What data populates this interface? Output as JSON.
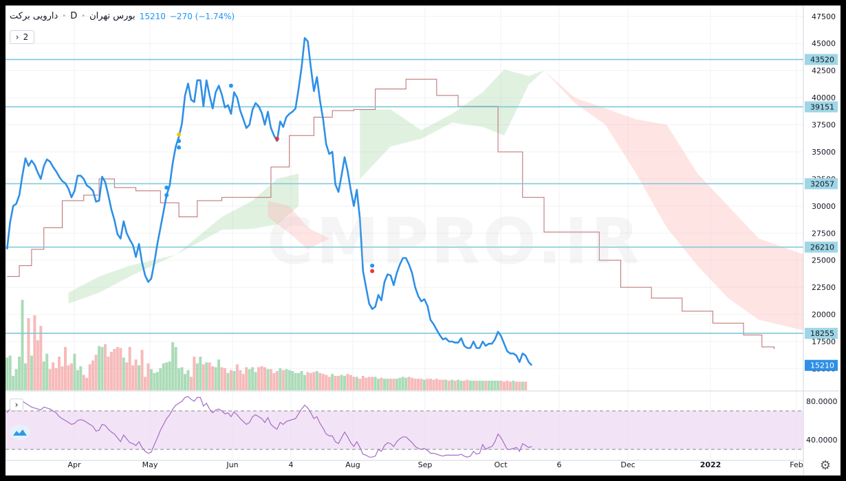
{
  "legend": {
    "symbol": "دارویی برکت",
    "interval": "D",
    "exchange": "بورس تهران",
    "last": "15210",
    "change": "−270 (−1.74%)"
  },
  "controls": {
    "collapse_label": "2",
    "rsi_collapse": "›"
  },
  "watermark": "CMPRO.IR",
  "colors": {
    "price_line": "#2e8fe6",
    "level_line": "#7cc7da",
    "level_label_bg": "#9fd6e6",
    "cloud_bull": "#a5d6a7",
    "cloud_bear": "#ffb3b3",
    "baseline": "#b86b6b",
    "vol_up": "#8fcfa0",
    "vol_down": "#f3a3a3",
    "rsi_line": "#a46bc8",
    "rsi_band": "#ecd9f2"
  },
  "chart_data": [
    {
      "type": "line",
      "title": "",
      "x_ticks": [
        "Apr",
        "May",
        "Jun",
        "4",
        "Aug",
        "Sep",
        "Oct",
        "6",
        "Dec",
        "2022",
        "Feb"
      ],
      "y_ticks": [
        47500,
        45000,
        42500,
        40000,
        37500,
        35000,
        32500,
        30000,
        27500,
        25000,
        22500,
        20000,
        17500,
        15000
      ],
      "ylim": [
        13000,
        48500
      ],
      "price": [
        26000,
        28500,
        30000,
        30200,
        31000,
        32800,
        34400,
        33700,
        34200,
        33800,
        33100,
        32500,
        33700,
        34300,
        34100,
        33600,
        33200,
        32700,
        32300,
        32100,
        31600,
        30800,
        31400,
        32800,
        32800,
        32500,
        31900,
        31700,
        31400,
        30400,
        30500,
        32700,
        32200,
        31000,
        29700,
        28700,
        27400,
        27000,
        28600,
        27500,
        26900,
        26400,
        25300,
        26500,
        24800,
        23600,
        23000,
        23300,
        24800,
        26500,
        28000,
        29500,
        31000,
        31900,
        34000,
        35500,
        36400,
        37600,
        40200,
        41300,
        39800,
        39600,
        41600,
        41600,
        39200,
        41600,
        40200,
        39000,
        40500,
        41100,
        40300,
        39100,
        39300,
        38500,
        40500,
        40000,
        38800,
        38000,
        37200,
        37500,
        38900,
        39500,
        39200,
        38600,
        37500,
        38700,
        37200,
        36500,
        36000,
        37800,
        37300,
        38200,
        38500,
        38700,
        39000,
        40800,
        42800,
        45500,
        45200,
        42800,
        40600,
        41900,
        39700,
        38000,
        35700,
        34800,
        35000,
        32000,
        31300,
        32800,
        34500,
        33200,
        31500,
        30000,
        31500,
        28800,
        24000,
        22500,
        21000,
        20500,
        20700,
        21800,
        21300,
        23000,
        23700,
        23600,
        22700,
        23800,
        24600,
        25200,
        25200,
        24600,
        23800,
        22500,
        21700,
        21200,
        21400,
        20800,
        19500,
        19100,
        18600,
        18100,
        17700,
        17800,
        17500,
        17500,
        17400,
        17400,
        17800,
        17100,
        16900,
        16900,
        17500,
        16900,
        16900,
        17500,
        17100,
        17300,
        17300,
        17700,
        18400,
        18000,
        17300,
        16600,
        16400,
        16400,
        16200,
        15600,
        16400,
        16200,
        15600,
        15300
      ],
      "levels": [
        {
          "value": 43520,
          "label": "43520"
        },
        {
          "value": 39151,
          "label": "39151"
        },
        {
          "value": 32057,
          "label": "32057"
        },
        {
          "value": 26210,
          "label": "26210"
        },
        {
          "value": 18255,
          "label": "18255"
        }
      ],
      "last_price_label": "15210",
      "baseline": [
        [
          0,
          23500
        ],
        [
          4,
          24500
        ],
        [
          8,
          26000
        ],
        [
          12,
          28000
        ],
        [
          18,
          30500
        ],
        [
          25,
          31000
        ],
        [
          30,
          32500
        ],
        [
          35,
          31700
        ],
        [
          42,
          31400
        ],
        [
          50,
          30300
        ],
        [
          56,
          29000
        ],
        [
          62,
          30500
        ],
        [
          70,
          30800
        ],
        [
          75,
          30800
        ],
        [
          80,
          30800
        ],
        [
          86,
          33600
        ],
        [
          92,
          36500
        ],
        [
          100,
          38200
        ],
        [
          106,
          38800
        ],
        [
          113,
          38900
        ],
        [
          120,
          40800
        ],
        [
          130,
          41700
        ],
        [
          137,
          41700
        ],
        [
          140,
          40200
        ],
        [
          147,
          39200
        ],
        [
          155,
          39200
        ],
        [
          160,
          35000
        ],
        [
          168,
          30800
        ],
        [
          175,
          27600
        ],
        [
          185,
          27600
        ],
        [
          193,
          25000
        ],
        [
          200,
          22500
        ],
        [
          210,
          21500
        ],
        [
          220,
          20300
        ],
        [
          230,
          19200
        ],
        [
          240,
          18100
        ],
        [
          246,
          17000
        ],
        [
          250,
          16800
        ]
      ],
      "cloud_bull": [
        {
          "upper": [
            [
              20,
              22000
            ],
            [
              30,
              23500
            ],
            [
              40,
              24500
            ],
            [
              55,
              25500
            ],
            [
              70,
              29000
            ],
            [
              80,
              30500
            ],
            [
              88,
              32500
            ],
            [
              95,
              33000
            ]
          ],
          "lower": [
            [
              20,
              21000
            ],
            [
              30,
              22000
            ],
            [
              40,
              23500
            ],
            [
              55,
              25500
            ],
            [
              70,
              27800
            ],
            [
              80,
              27900
            ],
            [
              88,
              28300
            ],
            [
              95,
              30000
            ]
          ]
        },
        {
          "upper": [
            [
              115,
              38900
            ],
            [
              125,
              38900
            ],
            [
              135,
              37000
            ],
            [
              145,
              38500
            ],
            [
              155,
              40500
            ],
            [
              162,
              42600
            ],
            [
              170,
              42000
            ],
            [
              175,
              42500
            ]
          ],
          "lower": [
            [
              115,
              32500
            ],
            [
              125,
              35500
            ],
            [
              135,
              36200
            ],
            [
              145,
              37700
            ],
            [
              155,
              37300
            ],
            [
              162,
              36500
            ],
            [
              170,
              41200
            ],
            [
              175,
              42500
            ]
          ]
        }
      ],
      "cloud_bear": [
        {
          "upper": [
            [
              85,
              30500
            ],
            [
              92,
              30000
            ],
            [
              98,
              28000
            ],
            [
              105,
              27000
            ]
          ],
          "lower": [
            [
              85,
              29000
            ],
            [
              92,
              27500
            ],
            [
              98,
              26000
            ],
            [
              105,
              27000
            ]
          ]
        },
        {
          "upper": [
            [
              175,
              42500
            ],
            [
              185,
              40000
            ],
            [
              195,
              39000
            ],
            [
              205,
              38000
            ],
            [
              215,
              37500
            ],
            [
              225,
              33000
            ],
            [
              235,
              30000
            ],
            [
              245,
              27000
            ],
            [
              260,
              25500
            ]
          ],
          "lower": [
            [
              175,
              42500
            ],
            [
              185,
              39500
            ],
            [
              195,
              37500
            ],
            [
              205,
              33000
            ],
            [
              215,
              28000
            ],
            [
              225,
              24500
            ],
            [
              235,
              21500
            ],
            [
              245,
              19500
            ],
            [
              260,
              18500
            ]
          ]
        }
      ],
      "volume": [
        34,
        36,
        15,
        22,
        35,
        94,
        28,
        75,
        36,
        78,
        52,
        67,
        30,
        38,
        22,
        29,
        23,
        35,
        25,
        45,
        26,
        28,
        38,
        21,
        25,
        16,
        13,
        27,
        31,
        37,
        46,
        45,
        48,
        35,
        40,
        43,
        45,
        44,
        34,
        29,
        45,
        26,
        32,
        26,
        42,
        14,
        28,
        22,
        18,
        19,
        23,
        28,
        29,
        30,
        50,
        45,
        23,
        24,
        17,
        21,
        14,
        35,
        28,
        35,
        27,
        29,
        29,
        25,
        24,
        32,
        24,
        23,
        18,
        21,
        20,
        27,
        21,
        17,
        24,
        22,
        24,
        19,
        24,
        25,
        24,
        22,
        22,
        18,
        20,
        23,
        21,
        22,
        21,
        20,
        18,
        18,
        20,
        16,
        19,
        18,
        19,
        20,
        18,
        17,
        16,
        14,
        17,
        15,
        15,
        16,
        15,
        17,
        16,
        14,
        14,
        12,
        15,
        13,
        14,
        14,
        14,
        12,
        13,
        12,
        12,
        12,
        12,
        12,
        13,
        14,
        13,
        14,
        13,
        12,
        12,
        12,
        11,
        12,
        12,
        11,
        12,
        11,
        11,
        11,
        10,
        11,
        10,
        11,
        10,
        10,
        11,
        10,
        10,
        10,
        10,
        10,
        10,
        10,
        10,
        10,
        10,
        10,
        9,
        10,
        9,
        10,
        9,
        9,
        9,
        9
      ],
      "markers": [
        {
          "idx": 52,
          "value": 31700,
          "color": "#2196f3"
        },
        {
          "idx": 52,
          "value": 31000,
          "color": "#2196f3"
        },
        {
          "idx": 56,
          "value": 36600,
          "color": "#f5c400"
        },
        {
          "idx": 56,
          "value": 36000,
          "color": "#2196f3"
        },
        {
          "idx": 56,
          "value": 35400,
          "color": "#2196f3"
        },
        {
          "idx": 73,
          "value": 41100,
          "color": "#2196f3"
        },
        {
          "idx": 88,
          "value": 36200,
          "color": "#e53935"
        },
        {
          "idx": 119,
          "value": 24500,
          "color": "#2196f3"
        },
        {
          "idx": 119,
          "value": 24000,
          "color": "#e53935"
        }
      ]
    },
    {
      "type": "line",
      "title": "",
      "y_ticks": [
        80.0,
        40.0
      ],
      "y_tick_labels": [
        "80.0000",
        "40.0000"
      ],
      "ylim": [
        20,
        90
      ],
      "band": [
        30,
        70
      ],
      "rsi": [
        68,
        72,
        76,
        80,
        82,
        80,
        78,
        76,
        74,
        73,
        72,
        71,
        74,
        73,
        72,
        70,
        68,
        64,
        62,
        60,
        58,
        56,
        57,
        60,
        61,
        60,
        58,
        56,
        54,
        49,
        50,
        56,
        55,
        51,
        48,
        46,
        42,
        38,
        45,
        41,
        37,
        36,
        34,
        38,
        32,
        28,
        26,
        27,
        35,
        42,
        50,
        56,
        62,
        66,
        72,
        76,
        78,
        80,
        84,
        85,
        82,
        80,
        84,
        84,
        75,
        78,
        72,
        68,
        71,
        72,
        70,
        67,
        68,
        64,
        69,
        66,
        62,
        59,
        56,
        58,
        64,
        66,
        64,
        62,
        58,
        63,
        56,
        53,
        51,
        58,
        56,
        59,
        60,
        61,
        62,
        67,
        72,
        76,
        73,
        68,
        62,
        64,
        57,
        52,
        46,
        44,
        44,
        38,
        36,
        42,
        48,
        43,
        37,
        33,
        38,
        32,
        25,
        24,
        22,
        22,
        23,
        30,
        28,
        34,
        37,
        36,
        33,
        38,
        41,
        43,
        43,
        40,
        37,
        33,
        31,
        30,
        31,
        29,
        26,
        26,
        25,
        24,
        23,
        24,
        24,
        24,
        24,
        24,
        25,
        23,
        22,
        23,
        28,
        25,
        26,
        35,
        30,
        32,
        33,
        38,
        46,
        42,
        36,
        30,
        30,
        31,
        32,
        28,
        36,
        34,
        32,
        33
      ]
    }
  ]
}
